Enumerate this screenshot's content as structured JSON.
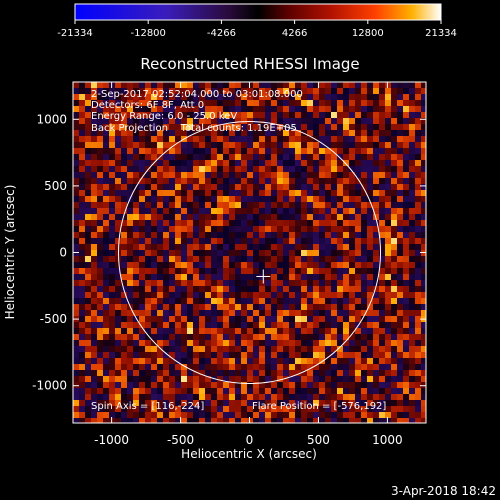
{
  "chart_data": {
    "type": "heatmap",
    "title": "Reconstructed RHESSI Image",
    "xlabel": "Heliocentric X (arcsec)",
    "ylabel": "Heliocentric Y (arcsec)",
    "xlim": [
      -1280,
      1280
    ],
    "ylim": [
      -1280,
      1280
    ],
    "xticks": [
      -1000,
      -500,
      0,
      500,
      1000
    ],
    "yticks": [
      -1000,
      -500,
      0,
      500,
      1000
    ],
    "xtick_labels": [
      "-1000",
      "-500",
      "0",
      "500",
      "1000"
    ],
    "ytick_labels": [
      "-1000",
      "-500",
      "0",
      "500",
      "1000"
    ],
    "colorbar": {
      "range": [
        -21334,
        21334
      ],
      "tick_values": [
        -21334,
        -12800,
        -4266,
        4266,
        12800,
        21334
      ],
      "tick_labels": [
        "-21334",
        "-12800",
        "-4266",
        "4266",
        "12800",
        "21334"
      ],
      "colors": [
        "#0000ff",
        "#3a1dbb",
        "#4b0e7a",
        "#000000",
        "#5a0000",
        "#b21200",
        "#ff4000",
        "#ffb000",
        "#ffff80",
        "#ffffff"
      ]
    },
    "solar_limb_radius": 950,
    "flare_position": [
      -576,
      192
    ],
    "spin_axis": [
      116,
      -224
    ],
    "annotations": [
      "2-Sep-2017 02:52:04.000 to 03:01:08.000",
      "Detectors: 6F 8F, Att 0",
      "Energy Range: 6.0 - 25.0 keV",
      "Back Projection    Total counts: 1.19E+05"
    ],
    "footer_left": "Spin Axis = [116,-224]",
    "footer_right": "Flare Position = [-576,192]"
  },
  "timestamp": "3-Apr-2018 18:42"
}
